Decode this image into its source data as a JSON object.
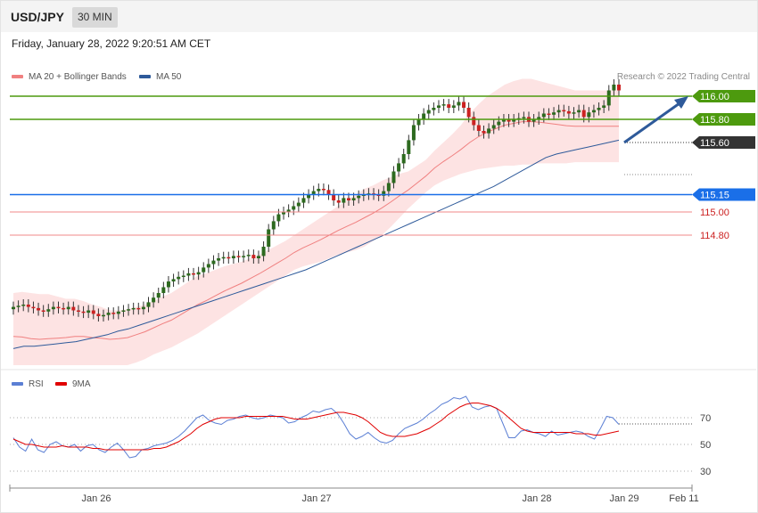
{
  "header": {
    "symbol": "USD/JPY",
    "timeframe": "30 MIN"
  },
  "timestamp": "Friday, January 28, 2022 9:20:51 AM CET",
  "legend": {
    "ma20": "MA 20 + Bollinger Bands",
    "ma20_color": "#f08080",
    "ma50": "MA 50",
    "ma50_color": "#2e5a9a"
  },
  "rsi_legend": {
    "rsi": "RSI",
    "rsi_color": "#5b7fd4",
    "ma9": "9MA",
    "ma9_color": "#e00000"
  },
  "credit": "Research © 2022 Trading Central",
  "colors": {
    "up_candle": "#2d6a1f",
    "down_candle": "#cc2222",
    "band_fill": "#fde3e3",
    "target_green": "#4d9a0e",
    "pivot_blue": "#1a6fe8",
    "support_red": "#f08a8a",
    "current_dark": "#333333",
    "arrow": "#2e5a9a"
  },
  "chart_data": [
    {
      "type": "candlestick",
      "title": "",
      "ylim": [
        114.2,
        116.2
      ],
      "x_ticks": [
        "Jan 26",
        "Jan 27",
        "Jan 28",
        "Jan 29",
        "Feb 11"
      ],
      "levels": [
        {
          "value": 116.0,
          "label": "116.00",
          "kind": "resistance"
        },
        {
          "value": 115.8,
          "label": "115.80",
          "kind": "resistance"
        },
        {
          "value": 115.6,
          "label": "115.60",
          "kind": "current"
        },
        {
          "value": 115.15,
          "label": "115.15",
          "kind": "pivot"
        },
        {
          "value": 115.0,
          "label": "115.00",
          "kind": "support"
        },
        {
          "value": 114.8,
          "label": "114.80",
          "kind": "support"
        }
      ],
      "projection": {
        "from": 115.6,
        "to": 116.0
      },
      "closes": [
        114.18,
        114.19,
        114.2,
        114.18,
        114.17,
        114.15,
        114.14,
        114.16,
        114.18,
        114.17,
        114.16,
        114.18,
        114.15,
        114.14,
        114.13,
        114.15,
        114.12,
        114.1,
        114.11,
        114.13,
        114.12,
        114.14,
        114.15,
        114.16,
        114.17,
        114.16,
        114.18,
        114.22,
        114.26,
        114.3,
        114.35,
        114.4,
        114.42,
        114.44,
        114.45,
        114.47,
        114.46,
        114.48,
        114.52,
        114.55,
        114.58,
        114.6,
        114.61,
        114.6,
        114.62,
        114.61,
        114.62,
        114.63,
        114.6,
        114.62,
        114.7,
        114.85,
        114.92,
        114.98,
        115.0,
        115.02,
        115.05,
        115.08,
        115.12,
        115.15,
        115.18,
        115.2,
        115.19,
        115.15,
        115.1,
        115.08,
        115.12,
        115.1,
        115.12,
        115.14,
        115.15,
        115.16,
        115.15,
        115.14,
        115.18,
        115.25,
        115.35,
        115.42,
        115.5,
        115.62,
        115.75,
        115.8,
        115.85,
        115.88,
        115.9,
        115.92,
        115.93,
        115.9,
        115.92,
        115.95,
        115.9,
        115.82,
        115.75,
        115.7,
        115.68,
        115.72,
        115.75,
        115.78,
        115.8,
        115.78,
        115.8,
        115.81,
        115.82,
        115.78,
        115.8,
        115.82,
        115.85,
        115.84,
        115.86,
        115.88,
        115.87,
        115.85,
        115.86,
        115.88,
        115.82,
        115.86,
        115.88,
        115.9,
        115.92,
        116.05,
        116.1,
        116.05
      ],
      "bb_upper": [
        114.45,
        114.46,
        114.45,
        114.44,
        114.44,
        114.42,
        114.4,
        114.4,
        114.38,
        114.35,
        114.33,
        114.3,
        114.3,
        114.31,
        114.33,
        114.35,
        114.38,
        114.42,
        114.45,
        114.5,
        114.55,
        114.6,
        114.62,
        114.65,
        114.68,
        114.7,
        114.72,
        114.75,
        114.78,
        114.82,
        114.86,
        114.9,
        114.95,
        115.0,
        115.05,
        115.1,
        115.15,
        115.2,
        115.25,
        115.3,
        115.35,
        115.38,
        115.42,
        115.45,
        115.48,
        115.5,
        115.55,
        115.6,
        115.68,
        115.75,
        115.82,
        115.9,
        116.0,
        116.08,
        116.15,
        116.2,
        116.25,
        116.28,
        116.3,
        116.3,
        116.28,
        116.26,
        116.24,
        116.22,
        116.2,
        116.2,
        116.2,
        116.2,
        116.2,
        116.2
      ],
      "bb_lower": [
        113.9,
        113.88,
        113.86,
        113.86,
        113.87,
        113.9,
        113.93,
        113.95,
        113.97,
        113.98,
        113.99,
        114.0,
        114.01,
        114.02,
        114.05,
        114.08,
        114.12,
        114.15,
        114.18,
        114.22,
        114.26,
        114.3,
        114.35,
        114.4,
        114.45,
        114.5,
        114.55,
        114.6,
        114.65,
        114.7,
        114.75,
        114.8,
        114.85,
        114.88,
        114.9,
        114.92,
        114.95,
        114.98,
        115.0,
        115.02,
        115.05,
        115.1,
        115.15,
        115.22,
        115.3,
        115.38,
        115.45,
        115.52,
        115.58,
        115.62,
        115.65,
        115.68,
        115.7,
        115.72,
        115.73,
        115.74,
        115.75,
        115.75,
        115.76,
        115.76,
        115.77,
        115.77,
        115.77,
        115.77,
        115.78,
        115.78,
        115.78,
        115.78,
        115.78,
        115.78
      ],
      "ma50": [
        114.1,
        114.12,
        114.12,
        114.13,
        114.14,
        114.15,
        114.16,
        114.18,
        114.2,
        114.22,
        114.25,
        114.27,
        114.3,
        114.33,
        114.36,
        114.39,
        114.42,
        114.45,
        114.48,
        114.51,
        114.54,
        114.57,
        114.6,
        114.63,
        114.66,
        114.69,
        114.72,
        114.75,
        114.78,
        114.82,
        114.86,
        114.9,
        114.94,
        114.98,
        115.02,
        115.06,
        115.1,
        115.14,
        115.18,
        115.22,
        115.26,
        115.3,
        115.34,
        115.38,
        115.42,
        115.46,
        115.5,
        115.55,
        115.6,
        115.65,
        115.7,
        115.75,
        115.78,
        115.8,
        115.82,
        115.84,
        115.86,
        115.88,
        115.9
      ]
    },
    {
      "type": "line",
      "title": "",
      "ylim": [
        20,
        90
      ],
      "yticks": [
        30,
        50,
        70
      ],
      "series": [
        {
          "name": "RSI",
          "values": [
            55,
            48,
            45,
            54,
            46,
            44,
            50,
            52,
            49,
            48,
            50,
            45,
            49,
            50,
            46,
            44,
            48,
            51,
            46,
            40,
            41,
            46,
            47,
            49,
            50,
            51,
            53,
            56,
            60,
            65,
            70,
            72,
            68,
            66,
            65,
            68,
            69,
            71,
            72,
            70,
            69,
            70,
            72,
            71,
            70,
            66,
            67,
            70,
            72,
            75,
            74,
            76,
            77,
            73,
            66,
            58,
            54,
            56,
            59,
            55,
            52,
            51,
            53,
            58,
            62,
            64,
            66,
            69,
            73,
            76,
            80,
            82,
            85,
            84,
            86,
            78,
            76,
            78,
            79,
            77,
            66,
            55,
            55,
            60,
            61,
            59,
            58,
            56,
            60,
            57,
            58,
            59,
            60,
            59,
            56,
            54,
            62,
            71,
            70,
            65
          ]
        },
        {
          "name": "9MA",
          "values": [
            54,
            52,
            50,
            50,
            49,
            48,
            48,
            48,
            49,
            48,
            48,
            48,
            48,
            47,
            47,
            46,
            46,
            46,
            46,
            46,
            46,
            46,
            46,
            47,
            47,
            48,
            50,
            52,
            55,
            58,
            62,
            65,
            67,
            69,
            70,
            70,
            70,
            70,
            71,
            71,
            71,
            71,
            71,
            71,
            71,
            70,
            69,
            69,
            69,
            70,
            71,
            72,
            73,
            74,
            74,
            73,
            72,
            70,
            67,
            63,
            59,
            57,
            56,
            56,
            56,
            57,
            58,
            60,
            62,
            65,
            68,
            72,
            75,
            78,
            80,
            81,
            81,
            80,
            79,
            77,
            74,
            70,
            66,
            62,
            60,
            59,
            59,
            59,
            59,
            59,
            59,
            59,
            58,
            58,
            58,
            57,
            57,
            58,
            59,
            60
          ]
        }
      ]
    }
  ]
}
